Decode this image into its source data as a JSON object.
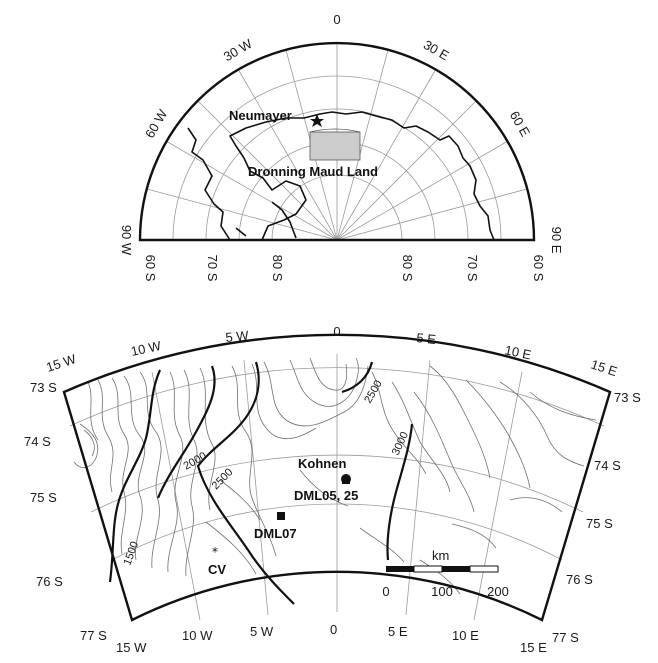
{
  "overview_map": {
    "lon_labels": [
      "0",
      "30 W",
      "30 E",
      "60 W",
      "60 E",
      "90 W",
      "90 E"
    ],
    "lat_labels": [
      "60 S",
      "70 S",
      "80 S",
      "80 S",
      "70 S",
      "60 S"
    ],
    "stations": [
      {
        "name": "Neumayer"
      }
    ],
    "region_label": "Dronning Maud Land"
  },
  "detail_map": {
    "top_lon_labels": [
      "15 W",
      "10 W",
      "5 W",
      "0",
      "5 E",
      "10 E",
      "15 E"
    ],
    "bottom_lon_labels": [
      "15 W",
      "10 W",
      "5 W",
      "0",
      "5 E",
      "10 E",
      "15 E"
    ],
    "left_lat_labels": [
      "73 S",
      "74 S",
      "75 S",
      "76 S",
      "77 S"
    ],
    "right_lat_labels": [
      "73 S",
      "74 S",
      "75 S",
      "76 S",
      "77 S"
    ],
    "contour_labels": [
      "1500",
      "2000",
      "2500",
      "2500",
      "3000"
    ],
    "sites": [
      {
        "name": "Kohnen",
        "marker": "circle"
      },
      {
        "name": "DML05, 25",
        "marker": "square"
      },
      {
        "name": "DML07",
        "marker": "square"
      },
      {
        "name": "CV",
        "marker": "star"
      }
    ],
    "scale_bar": {
      "unit": "km",
      "ticks": [
        "0",
        "100",
        "200"
      ]
    }
  },
  "colors": {
    "ink": "#111111",
    "grid": "#9a9a9a",
    "study_area": "#cccccc"
  }
}
